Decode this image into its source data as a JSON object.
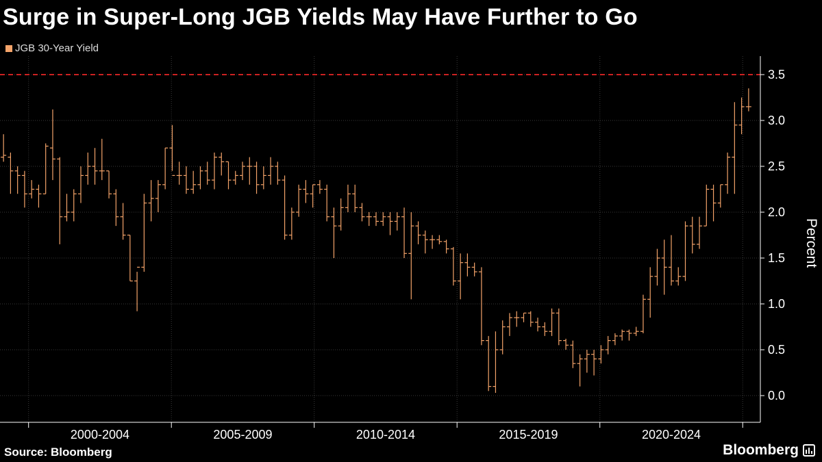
{
  "title": "Surge in Super-Long JGB Yields May Have Further to Go",
  "source": "Source: Bloomberg",
  "brand": "Bloomberg",
  "colors": {
    "series": "#f5a46a",
    "reference": "#cc2222",
    "grid": "#3a3a3a"
  },
  "chart_data": {
    "type": "ohlc",
    "title": "Surge in Super-Long JGB Yields May Have Further to Go",
    "legend": [
      "JGB 30-Year Yield"
    ],
    "legend_position": "top-left",
    "xlabel": "",
    "ylabel": "Percent",
    "ylim": [
      -0.25,
      3.6
    ],
    "xlim": [
      1999.0,
      2025.33
    ],
    "y_ticks": [
      "0.0",
      "0.5",
      "1.0",
      "1.5",
      "2.0",
      "2.5",
      "3.0",
      "3.5"
    ],
    "x_categories": [
      "2000-2004",
      "2005-2009",
      "2010-2014",
      "2015-2019",
      "2020-2024"
    ],
    "reference_line": {
      "value": 3.5,
      "style": "dashed"
    },
    "grid": true,
    "series": [
      {
        "name": "JGB 30-Year Yield",
        "values": [
          [
            2.6,
            2.85,
            2.55,
            2.62
          ],
          [
            2.6,
            2.65,
            2.2,
            2.45
          ],
          [
            2.45,
            2.5,
            2.2,
            2.4
          ],
          [
            2.4,
            2.45,
            2.05,
            2.2
          ],
          [
            2.2,
            2.35,
            2.15,
            2.25
          ],
          [
            2.25,
            2.3,
            2.05,
            2.2
          ],
          [
            2.2,
            2.75,
            2.2,
            2.72
          ],
          [
            2.7,
            3.12,
            2.35,
            2.58
          ],
          [
            2.58,
            2.6,
            1.65,
            1.95
          ],
          [
            1.95,
            2.2,
            1.9,
            2.0
          ],
          [
            2.0,
            2.25,
            1.9,
            2.2
          ],
          [
            2.2,
            2.5,
            2.1,
            2.4
          ],
          [
            2.4,
            2.65,
            2.3,
            2.5
          ],
          [
            2.5,
            2.7,
            2.3,
            2.45
          ],
          [
            2.45,
            2.8,
            2.35,
            2.45
          ],
          [
            2.45,
            2.45,
            2.15,
            2.2
          ],
          [
            2.2,
            2.25,
            1.85,
            1.95
          ],
          [
            1.95,
            2.1,
            1.7,
            1.75
          ],
          [
            1.75,
            1.75,
            1.25,
            1.25
          ],
          [
            1.25,
            1.35,
            0.92,
            1.4
          ],
          [
            1.4,
            2.2,
            1.35,
            2.1
          ],
          [
            2.1,
            2.35,
            1.9,
            2.15
          ],
          [
            2.15,
            2.35,
            2.0,
            2.3
          ],
          [
            2.3,
            2.7,
            2.25,
            2.7
          ],
          [
            2.7,
            2.95,
            2.45,
            2.4
          ],
          [
            2.4,
            2.55,
            2.3,
            2.4
          ],
          [
            2.4,
            2.5,
            2.2,
            2.25
          ],
          [
            2.25,
            2.45,
            2.2,
            2.3
          ],
          [
            2.3,
            2.5,
            2.25,
            2.45
          ],
          [
            2.45,
            2.55,
            2.3,
            2.35
          ],
          [
            2.35,
            2.65,
            2.25,
            2.6
          ],
          [
            2.6,
            2.65,
            2.4,
            2.55
          ],
          [
            2.55,
            2.55,
            2.25,
            2.35
          ],
          [
            2.35,
            2.45,
            2.3,
            2.4
          ],
          [
            2.4,
            2.55,
            2.35,
            2.5
          ],
          [
            2.5,
            2.6,
            2.3,
            2.5
          ],
          [
            2.5,
            2.55,
            2.2,
            2.3
          ],
          [
            2.3,
            2.5,
            2.25,
            2.4
          ],
          [
            2.4,
            2.6,
            2.3,
            2.5
          ],
          [
            2.5,
            2.55,
            2.3,
            2.35
          ],
          [
            2.35,
            2.4,
            1.7,
            1.75
          ],
          [
            1.75,
            2.05,
            1.7,
            2.0
          ],
          [
            2.0,
            2.3,
            1.95,
            2.25
          ],
          [
            2.25,
            2.35,
            2.1,
            2.2
          ],
          [
            2.2,
            2.3,
            2.05,
            2.3
          ],
          [
            2.3,
            2.35,
            2.2,
            2.25
          ],
          [
            2.25,
            2.3,
            1.9,
            1.95
          ],
          [
            1.95,
            2.05,
            1.5,
            1.85
          ],
          [
            1.85,
            2.15,
            1.8,
            2.05
          ],
          [
            2.05,
            2.3,
            2.0,
            2.2
          ],
          [
            2.2,
            2.3,
            2.0,
            2.05
          ],
          [
            2.05,
            2.1,
            1.9,
            1.95
          ],
          [
            1.95,
            2.0,
            1.85,
            1.95
          ],
          [
            1.95,
            2.0,
            1.85,
            1.9
          ],
          [
            1.9,
            2.0,
            1.85,
            1.95
          ],
          [
            1.95,
            2.0,
            1.75,
            1.9
          ],
          [
            1.9,
            2.0,
            1.8,
            1.95
          ],
          [
            1.95,
            2.05,
            1.5,
            1.55
          ],
          [
            1.55,
            2.0,
            1.05,
            1.85
          ],
          [
            1.85,
            1.9,
            1.65,
            1.75
          ],
          [
            1.75,
            1.8,
            1.55,
            1.7
          ],
          [
            1.7,
            1.75,
            1.6,
            1.7
          ],
          [
            1.7,
            1.75,
            1.65,
            1.68
          ],
          [
            1.68,
            1.7,
            1.55,
            1.6
          ],
          [
            1.6,
            1.62,
            1.2,
            1.25
          ],
          [
            1.25,
            1.55,
            1.05,
            1.45
          ],
          [
            1.45,
            1.55,
            1.3,
            1.4
          ],
          [
            1.4,
            1.45,
            1.3,
            1.35
          ],
          [
            1.35,
            1.4,
            0.55,
            0.6
          ],
          [
            0.6,
            0.65,
            0.05,
            0.1
          ],
          [
            0.1,
            0.7,
            0.03,
            0.5
          ],
          [
            0.5,
            0.82,
            0.45,
            0.75
          ],
          [
            0.75,
            0.9,
            0.65,
            0.85
          ],
          [
            0.85,
            0.92,
            0.75,
            0.85
          ],
          [
            0.85,
            0.9,
            0.8,
            0.9
          ],
          [
            0.9,
            0.92,
            0.75,
            0.8
          ],
          [
            0.8,
            0.85,
            0.7,
            0.75
          ],
          [
            0.75,
            0.8,
            0.65,
            0.7
          ],
          [
            0.7,
            0.95,
            0.65,
            0.9
          ],
          [
            0.9,
            0.95,
            0.55,
            0.6
          ],
          [
            0.6,
            0.62,
            0.5,
            0.55
          ],
          [
            0.55,
            0.6,
            0.3,
            0.35
          ],
          [
            0.35,
            0.45,
            0.1,
            0.4
          ],
          [
            0.4,
            0.5,
            0.25,
            0.45
          ],
          [
            0.45,
            0.5,
            0.22,
            0.4
          ],
          [
            0.4,
            0.55,
            0.35,
            0.5
          ],
          [
            0.5,
            0.65,
            0.45,
            0.6
          ],
          [
            0.6,
            0.68,
            0.55,
            0.65
          ],
          [
            0.65,
            0.72,
            0.6,
            0.7
          ],
          [
            0.7,
            0.72,
            0.6,
            0.68
          ],
          [
            0.68,
            0.75,
            0.65,
            0.7
          ],
          [
            0.7,
            1.1,
            0.68,
            1.05
          ],
          [
            1.05,
            1.4,
            0.85,
            1.3
          ],
          [
            1.3,
            1.6,
            1.2,
            1.5
          ],
          [
            1.5,
            1.7,
            1.1,
            1.4
          ],
          [
            1.4,
            1.75,
            1.2,
            1.25
          ],
          [
            1.25,
            1.4,
            1.2,
            1.3
          ],
          [
            1.3,
            1.9,
            1.25,
            1.85
          ],
          [
            1.85,
            1.95,
            1.55,
            1.65
          ],
          [
            1.65,
            1.95,
            1.6,
            1.85
          ],
          [
            1.85,
            2.3,
            1.85,
            2.25
          ],
          [
            2.25,
            2.3,
            1.9,
            2.1
          ],
          [
            2.1,
            2.3,
            2.05,
            2.3
          ],
          [
            2.3,
            2.65,
            2.2,
            2.6
          ],
          [
            2.6,
            3.2,
            2.2,
            2.95
          ],
          [
            2.95,
            3.25,
            2.85,
            3.15
          ],
          [
            3.15,
            3.35,
            3.1,
            3.15
          ]
        ]
      }
    ]
  }
}
